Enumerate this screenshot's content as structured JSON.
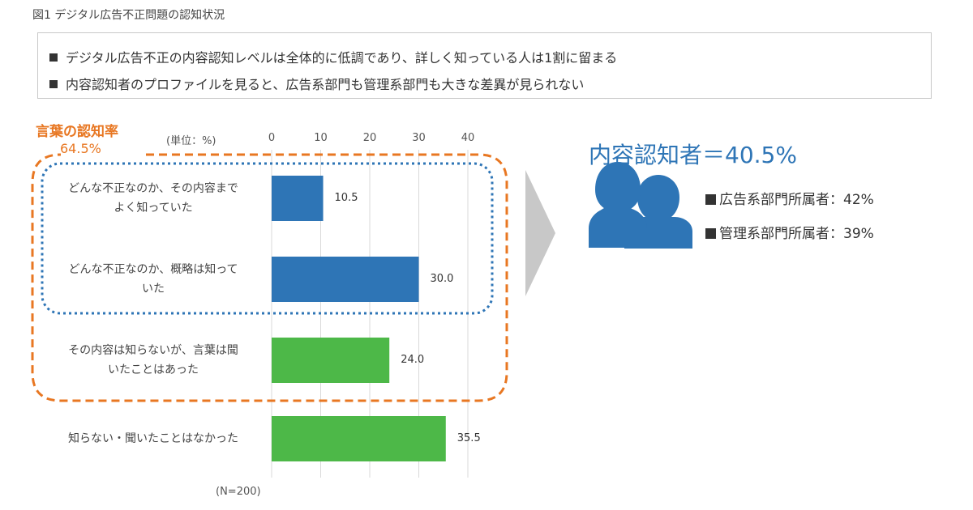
{
  "figure_title": "図1 デジタル広告不正問題の認知状況",
  "summary": [
    "デジタル広告不正の内容認知レベルは全体的に低調であり、詳しく知っている人は1割に留まる",
    "内容認知者のプロファイルを見ると、広告系部門も管理系部門も大きな差異が見られない"
  ],
  "recognition": {
    "title": "言葉の認知率",
    "rate": "64.5%"
  },
  "colors": {
    "blue": "#2e75b6",
    "green": "#4db848",
    "orange": "#e87722",
    "grey_arrow": "#c8c8c8"
  },
  "chart_data": {
    "type": "bar",
    "orientation": "horizontal",
    "unit_label": "(単位：%)",
    "xlim": [
      0,
      40
    ],
    "ticks": [
      "0",
      "10",
      "20",
      "30",
      "40"
    ],
    "grid": true,
    "categories": [
      "どんな不正なのか、その内容まで よく知っていた",
      "どんな不正なのか、概略は知って いた",
      "その内容は知らないが、言葉は聞 いたことはあった",
      "知らない・聞いたことはなかった"
    ],
    "values": [
      10.5,
      30.0,
      24.0,
      35.5
    ],
    "value_labels": [
      "10.5",
      "30.0",
      "24.0",
      "35.5"
    ],
    "bar_colors": [
      "#2e75b6",
      "#2e75b6",
      "#4db848",
      "#4db848"
    ],
    "n_label": "(N=200)"
  },
  "content_aware": {
    "headline": "内容認知者＝40.5%",
    "icon": "people-icon",
    "profiles": [
      "広告系部門所属者：42%",
      "管理系部門所属者：39%"
    ]
  }
}
